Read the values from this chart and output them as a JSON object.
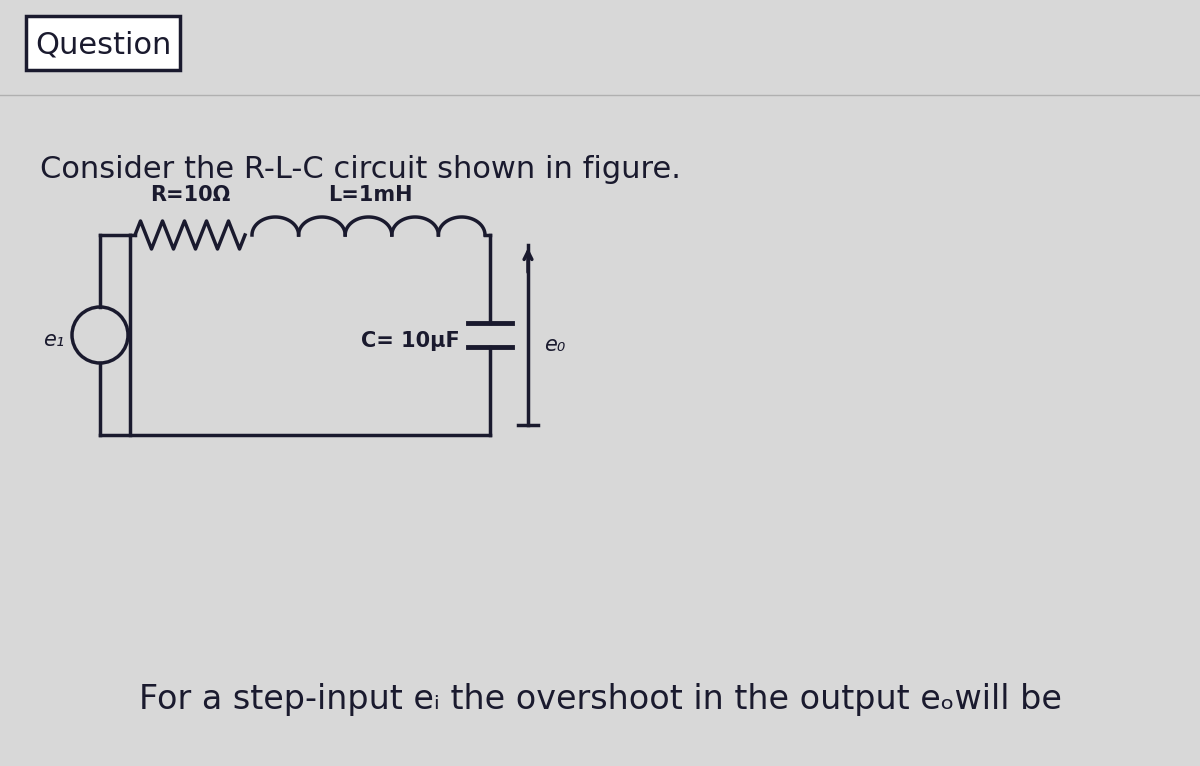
{
  "background_color": "#d8d8d8",
  "question_box_text": "Question",
  "text_color": "#1a1a2e",
  "box_color": "#1a1a2e",
  "circuit_color": "#1a1a2e",
  "r_label": "R=10Ω",
  "l_label": "L=1mH",
  "c_label": "C= 10μF",
  "ei_label": "e₁",
  "eo_label": "e₀",
  "consider_text": "Consider the R-L-C circuit shown in figure.",
  "footer_text": "For a step-input eᵢ the overshoot in the output eₒwill be",
  "font_size_question": 22,
  "font_size_main": 22,
  "font_size_footer": 24,
  "font_size_circuit_label": 15,
  "font_size_ei": 15,
  "font_size_eo": 15
}
